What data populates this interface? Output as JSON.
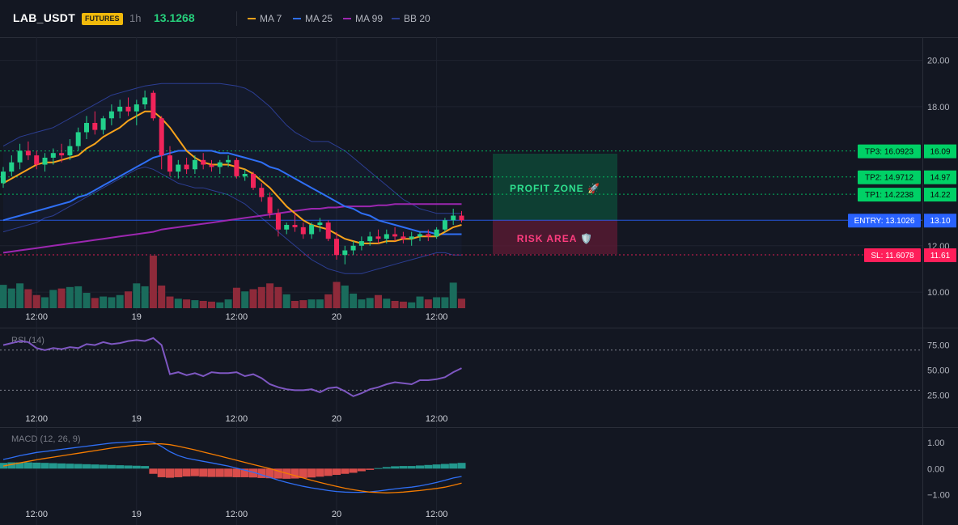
{
  "header": {
    "symbol": "LAB_USDT",
    "badge": "FUTURES",
    "timeframe": "1h",
    "last_price": "13.1268",
    "indicators": [
      {
        "label": "MA 7",
        "color": "#f7a21b"
      },
      {
        "label": "MA 25",
        "color": "#2f6ff5"
      },
      {
        "label": "MA 99",
        "color": "#9c27b0"
      },
      {
        "label": "BB 20",
        "color": "#2c3e93"
      }
    ]
  },
  "colors": {
    "up": "#22d18b",
    "down": "#f0245a",
    "vol_up": "#1a6c5c",
    "vol_down": "#8e2a3a",
    "rsi": "#7e57c2",
    "macd": "#2f6ff5",
    "signal": "#f57c00",
    "hist_up": "#26a69a",
    "hist_down": "#ef5350",
    "tp": "#00d166",
    "entry": "#2962ff",
    "sl": "#ff1f5a"
  },
  "levels": {
    "tp3": {
      "tag": "TP3: 16.0923",
      "axis": "16.09",
      "value": 16.0923
    },
    "tp2": {
      "tag": "TP2: 14.9712",
      "axis": "14.97",
      "value": 14.9712
    },
    "tp1": {
      "tag": "TP1: 14.2238",
      "axis": "14.22",
      "value": 14.2238
    },
    "entry": {
      "tag": "ENTRY: 13.1026",
      "axis": "13.10",
      "value": 13.1026
    },
    "sl": {
      "tag": "SL: 11.6078",
      "axis": "11.61",
      "value": 11.6078
    }
  },
  "zones": {
    "profit_label": "PROFIT ZONE 🚀",
    "risk_label": "RISK AREA 🛡️"
  },
  "panes": {
    "rsi_title": "RSI (14)",
    "macd_title": "MACD (12, 26, 9)"
  },
  "chart_data": [
    {
      "type": "candlestick",
      "pane": "price",
      "y_ticks": [
        "20.00",
        "18.00",
        "12.00",
        "10.00"
      ],
      "y_tick_values": [
        20,
        18,
        12,
        10
      ],
      "ylim": [
        9.2,
        21
      ],
      "x_ticks": [
        "12:00",
        "19",
        "12:00",
        "20",
        "12:00"
      ],
      "x_tick_index": [
        4,
        16,
        28,
        40,
        52
      ],
      "ohlc": [
        [
          14.7,
          15.4,
          14.5,
          15.2
        ],
        [
          15.2,
          15.9,
          15.0,
          15.6
        ],
        [
          15.6,
          16.4,
          15.3,
          16.1
        ],
        [
          16.1,
          16.5,
          15.7,
          15.9
        ],
        [
          15.9,
          16.1,
          15.3,
          15.5
        ],
        [
          15.5,
          16.0,
          15.2,
          15.8
        ],
        [
          15.8,
          16.2,
          15.5,
          16.0
        ],
        [
          16.0,
          16.4,
          15.6,
          15.9
        ],
        [
          15.9,
          16.6,
          15.7,
          16.3
        ],
        [
          16.3,
          17.1,
          16.1,
          16.9
        ],
        [
          16.9,
          17.6,
          16.6,
          17.3
        ],
        [
          17.3,
          17.8,
          16.8,
          17.0
        ],
        [
          17.0,
          17.6,
          16.8,
          17.5
        ],
        [
          17.5,
          18.1,
          17.2,
          17.8
        ],
        [
          17.8,
          18.3,
          17.5,
          18.0
        ],
        [
          18.0,
          18.4,
          17.6,
          17.8
        ],
        [
          17.8,
          18.3,
          17.2,
          18.1
        ],
        [
          18.1,
          18.7,
          17.9,
          18.4
        ],
        [
          18.6,
          18.7,
          17.4,
          17.5
        ],
        [
          17.5,
          17.6,
          15.3,
          15.9
        ],
        [
          15.9,
          16.3,
          15.0,
          15.2
        ],
        [
          15.2,
          15.7,
          14.9,
          15.5
        ],
        [
          15.5,
          15.8,
          15.1,
          15.3
        ],
        [
          15.3,
          15.9,
          15.1,
          15.7
        ],
        [
          15.7,
          16.0,
          15.3,
          15.5
        ],
        [
          15.5,
          15.7,
          15.2,
          15.4
        ],
        [
          15.4,
          15.7,
          15.1,
          15.6
        ],
        [
          15.6,
          15.9,
          15.4,
          15.7
        ],
        [
          15.7,
          15.8,
          14.9,
          15.0
        ],
        [
          15.0,
          15.3,
          14.8,
          15.1
        ],
        [
          15.1,
          15.2,
          14.4,
          14.5
        ],
        [
          14.5,
          14.7,
          13.9,
          14.1
        ],
        [
          14.1,
          14.3,
          13.2,
          13.4
        ],
        [
          13.4,
          13.6,
          12.4,
          12.7
        ],
        [
          12.7,
          13.0,
          12.5,
          12.9
        ],
        [
          12.9,
          13.4,
          12.6,
          12.8
        ],
        [
          12.8,
          13.0,
          12.3,
          12.5
        ],
        [
          12.5,
          13.0,
          12.3,
          12.9
        ],
        [
          12.9,
          13.2,
          12.6,
          13.0
        ],
        [
          13.0,
          13.1,
          12.2,
          12.3
        ],
        [
          12.3,
          12.6,
          11.4,
          11.6
        ],
        [
          11.6,
          12.0,
          11.2,
          11.8
        ],
        [
          11.8,
          12.2,
          11.6,
          12.0
        ],
        [
          12.0,
          12.4,
          11.8,
          12.2
        ],
        [
          12.2,
          12.6,
          12.0,
          12.4
        ],
        [
          12.4,
          12.7,
          12.1,
          12.3
        ],
        [
          12.3,
          12.7,
          12.1,
          12.5
        ],
        [
          12.5,
          12.8,
          12.2,
          12.4
        ],
        [
          12.4,
          12.6,
          12.1,
          12.3
        ],
        [
          12.3,
          12.6,
          12.0,
          12.4
        ],
        [
          12.4,
          12.6,
          12.2,
          12.5
        ],
        [
          12.5,
          12.7,
          12.2,
          12.4
        ],
        [
          12.4,
          12.8,
          12.3,
          12.7
        ],
        [
          12.7,
          13.2,
          12.6,
          13.1
        ],
        [
          13.1,
          13.6,
          12.9,
          13.3
        ],
        [
          13.3,
          13.5,
          13.0,
          13.1
        ]
      ],
      "volume": [
        3.2,
        2.7,
        3.4,
        2.6,
        1.8,
        1.5,
        2.5,
        2.7,
        2.9,
        3.0,
        2.1,
        1.4,
        1.6,
        1.5,
        1.8,
        2.3,
        3.4,
        3.0,
        7.2,
        3.1,
        1.6,
        1.3,
        1.2,
        1.1,
        1.0,
        0.9,
        0.8,
        1.2,
        2.8,
        2.3,
        2.6,
        2.9,
        3.4,
        2.9,
        1.9,
        1.0,
        1.1,
        1.2,
        1.2,
        1.9,
        3.6,
        3.1,
        2.0,
        1.2,
        1.4,
        1.8,
        1.3,
        1.0,
        0.9,
        0.8,
        1.6,
        1.2,
        1.5,
        1.5,
        3.5,
        1.3
      ],
      "ma7": [
        14.7,
        14.9,
        15.1,
        15.3,
        15.5,
        15.6,
        15.6,
        15.7,
        15.8,
        15.9,
        16.2,
        16.4,
        16.7,
        16.9,
        17.1,
        17.4,
        17.6,
        17.8,
        17.8,
        17.5,
        17.1,
        16.6,
        16.1,
        15.8,
        15.6,
        15.5,
        15.5,
        15.5,
        15.4,
        15.3,
        15.1,
        14.8,
        14.5,
        14.1,
        13.7,
        13.4,
        13.1,
        12.9,
        12.8,
        12.7,
        12.5,
        12.3,
        12.2,
        12.1,
        12.1,
        12.1,
        12.2,
        12.2,
        12.3,
        12.3,
        12.4,
        12.4,
        12.4,
        12.6,
        12.8,
        12.9
      ],
      "ma25": [
        13.1,
        13.2,
        13.3,
        13.4,
        13.5,
        13.6,
        13.7,
        13.8,
        13.9,
        14.1,
        14.2,
        14.4,
        14.6,
        14.8,
        15.0,
        15.2,
        15.4,
        15.6,
        15.8,
        15.9,
        16.0,
        16.1,
        16.1,
        16.1,
        16.1,
        16.1,
        16.0,
        16.0,
        15.9,
        15.8,
        15.7,
        15.6,
        15.4,
        15.3,
        15.1,
        14.9,
        14.7,
        14.5,
        14.3,
        14.1,
        13.9,
        13.7,
        13.6,
        13.4,
        13.3,
        13.1,
        13.0,
        12.9,
        12.8,
        12.7,
        12.6,
        12.6,
        12.5,
        12.5,
        12.5,
        12.5
      ],
      "ma99": [
        11.7,
        11.75,
        11.8,
        11.85,
        11.9,
        11.95,
        12.0,
        12.05,
        12.1,
        12.15,
        12.2,
        12.25,
        12.3,
        12.35,
        12.4,
        12.45,
        12.5,
        12.55,
        12.6,
        12.7,
        12.75,
        12.8,
        12.85,
        12.9,
        12.95,
        13.0,
        13.05,
        13.1,
        13.15,
        13.2,
        13.25,
        13.3,
        13.35,
        13.4,
        13.45,
        13.5,
        13.55,
        13.6,
        13.6,
        13.65,
        13.65,
        13.7,
        13.7,
        13.7,
        13.7,
        13.75,
        13.75,
        13.8,
        13.8,
        13.8,
        13.8,
        13.8,
        13.8,
        13.8,
        13.8,
        13.8
      ],
      "bb_upper": [
        16.3,
        16.5,
        16.7,
        16.8,
        16.9,
        17.0,
        17.1,
        17.3,
        17.5,
        17.7,
        17.9,
        18.1,
        18.3,
        18.5,
        18.6,
        18.7,
        18.8,
        18.9,
        18.95,
        19.0,
        19.0,
        19.0,
        19.0,
        19.0,
        19.0,
        19.0,
        19.0,
        18.95,
        18.9,
        18.8,
        18.6,
        18.3,
        18.0,
        17.6,
        17.2,
        16.9,
        16.7,
        16.5,
        16.5,
        16.5,
        16.3,
        16.1,
        15.8,
        15.5,
        15.2,
        14.9,
        14.6,
        14.3,
        14.0,
        13.8,
        13.6,
        13.5,
        13.4,
        13.4,
        13.4,
        13.4
      ],
      "bb_lower": [
        12.6,
        12.7,
        12.8,
        12.9,
        13.0,
        13.2,
        13.3,
        13.5,
        13.7,
        13.9,
        14.1,
        14.3,
        14.5,
        14.7,
        14.9,
        15.1,
        15.3,
        15.4,
        15.3,
        15.1,
        14.9,
        14.7,
        14.6,
        14.5,
        14.5,
        14.4,
        14.3,
        14.2,
        14.0,
        13.8,
        13.5,
        13.2,
        12.9,
        12.6,
        12.3,
        12.0,
        11.7,
        11.4,
        11.2,
        11.0,
        10.9,
        10.8,
        10.8,
        10.8,
        10.9,
        11.0,
        11.1,
        11.2,
        11.3,
        11.4,
        11.5,
        11.6,
        11.7,
        11.7,
        11.6,
        11.6
      ]
    },
    {
      "type": "line",
      "pane": "rsi",
      "title": "RSI (14)",
      "y_ticks": [
        "75.00",
        "50.00",
        "25.00"
      ],
      "y_tick_values": [
        75,
        50,
        25
      ],
      "ylim": [
        15,
        90
      ],
      "levels": [
        70,
        30
      ],
      "values": [
        75,
        77,
        79,
        78,
        72,
        70,
        72,
        71,
        73,
        72,
        76,
        75,
        78,
        76,
        77,
        79,
        80,
        79,
        82,
        75,
        46,
        48,
        45,
        47,
        44,
        48,
        47,
        47,
        48,
        44,
        46,
        42,
        36,
        33,
        31,
        30,
        30,
        31,
        28,
        32,
        33,
        29,
        24,
        27,
        31,
        33,
        36,
        38,
        37,
        36,
        40,
        40,
        41,
        43,
        48,
        52
      ]
    },
    {
      "type": "bar+line",
      "pane": "macd",
      "title": "MACD (12, 26, 9)",
      "y_ticks": [
        "1.00",
        "0.00",
        "−1.00"
      ],
      "y_tick_values": [
        1,
        0,
        -1
      ],
      "ylim": [
        -1.45,
        1.5
      ],
      "macd": [
        0.35,
        0.42,
        0.5,
        0.56,
        0.62,
        0.66,
        0.7,
        0.74,
        0.78,
        0.82,
        0.86,
        0.9,
        0.94,
        0.98,
        1.0,
        1.02,
        1.04,
        1.05,
        1.02,
        0.85,
        0.65,
        0.5,
        0.4,
        0.34,
        0.28,
        0.22,
        0.16,
        0.1,
        0.02,
        -0.06,
        -0.14,
        -0.24,
        -0.34,
        -0.44,
        -0.53,
        -0.61,
        -0.68,
        -0.74,
        -0.79,
        -0.84,
        -0.88,
        -0.9,
        -0.91,
        -0.91,
        -0.89,
        -0.86,
        -0.82,
        -0.78,
        -0.74,
        -0.71,
        -0.66,
        -0.6,
        -0.53,
        -0.45,
        -0.36,
        -0.3
      ],
      "signal": [
        0.1,
        0.16,
        0.22,
        0.28,
        0.34,
        0.39,
        0.44,
        0.49,
        0.54,
        0.59,
        0.64,
        0.69,
        0.74,
        0.79,
        0.83,
        0.87,
        0.9,
        0.93,
        0.95,
        0.95,
        0.92,
        0.86,
        0.79,
        0.72,
        0.64,
        0.56,
        0.48,
        0.4,
        0.32,
        0.24,
        0.16,
        0.08,
        0.0,
        -0.09,
        -0.18,
        -0.27,
        -0.36,
        -0.45,
        -0.53,
        -0.61,
        -0.68,
        -0.75,
        -0.81,
        -0.86,
        -0.9,
        -0.92,
        -0.93,
        -0.92,
        -0.9,
        -0.87,
        -0.84,
        -0.8,
        -0.76,
        -0.71,
        -0.64,
        -0.56
      ],
      "histogram": [
        0.22,
        0.24,
        0.24,
        0.24,
        0.23,
        0.22,
        0.21,
        0.2,
        0.19,
        0.18,
        0.17,
        0.16,
        0.15,
        0.14,
        0.13,
        0.12,
        0.11,
        0.1,
        -0.2,
        -0.33,
        -0.35,
        -0.33,
        -0.3,
        -0.29,
        -0.31,
        -0.32,
        -0.32,
        -0.32,
        -0.33,
        -0.33,
        -0.34,
        -0.36,
        -0.37,
        -0.38,
        -0.39,
        -0.38,
        -0.36,
        -0.34,
        -0.31,
        -0.28,
        -0.24,
        -0.2,
        -0.16,
        -0.1,
        -0.05,
        0.02,
        0.06,
        0.09,
        0.1,
        0.1,
        0.12,
        0.14,
        0.16,
        0.18,
        0.2,
        0.22
      ]
    }
  ]
}
